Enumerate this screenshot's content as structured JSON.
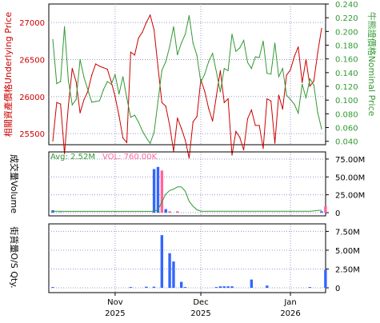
{
  "chart_data": [
    {
      "type": "line",
      "ylabel_left": "相關資產價格Underlying Price",
      "ylabel_right": "牛熊證價格Nominal Price",
      "ylim_left": [
        25350,
        27250
      ],
      "yticks_left": [
        "25500",
        "26000",
        "26500",
        "27000"
      ],
      "ylim_right": [
        0.035,
        0.24
      ],
      "yticks_right": [
        "0.040",
        "0.060",
        "0.080",
        "0.100",
        "0.120",
        "0.140",
        "0.160",
        "0.180",
        "0.200",
        "0.220",
        "0.240"
      ],
      "grid": true,
      "series": [
        {
          "color": "#cc0000",
          "axis": "left",
          "values": [
            25400,
            25920,
            25900,
            25230,
            25880,
            26380,
            26200,
            25780,
            25960,
            26070,
            26290,
            26440,
            26410,
            26390,
            26370,
            26200,
            26000,
            25740,
            25440,
            25380,
            26600,
            26560,
            26790,
            26870,
            27000,
            27100,
            26900,
            26400,
            25920,
            25870,
            25610,
            25260,
            25710,
            25570,
            25410,
            25170,
            25660,
            25730,
            26230,
            26070,
            25840,
            25670,
            26010,
            26350,
            25920,
            25970,
            25210,
            25530,
            25450,
            25280,
            25700,
            25820,
            25610,
            25610,
            25300,
            25970,
            25940,
            25370,
            26020,
            25830,
            26290,
            26360,
            26540,
            26670,
            26190,
            26500,
            26140,
            26210,
            26590,
            26920
          ]
        },
        {
          "color": "#339933",
          "axis": "right",
          "values": [
            0.188,
            0.124,
            0.127,
            0.207,
            0.128,
            0.093,
            0.101,
            0.159,
            0.133,
            0.115,
            0.097,
            0.098,
            0.099,
            0.115,
            0.127,
            0.123,
            0.137,
            0.109,
            0.134,
            0.103,
            0.075,
            0.078,
            0.068,
            0.055,
            0.045,
            0.037,
            0.053,
            0.098,
            0.143,
            0.156,
            0.178,
            0.207,
            0.166,
            0.183,
            0.196,
            0.223,
            0.183,
            0.165,
            0.126,
            0.138,
            0.156,
            0.168,
            0.141,
            0.112,
            0.146,
            0.143,
            0.196,
            0.171,
            0.176,
            0.187,
            0.155,
            0.146,
            0.163,
            0.162,
            0.186,
            0.139,
            0.138,
            0.183,
            0.134,
            0.146,
            0.107,
            0.101,
            0.094,
            0.081,
            0.123,
            0.103,
            0.131,
            0.122,
            0.082,
            0.058
          ]
        }
      ],
      "x_range_months": [
        "2025-10-09",
        "2026-01-15"
      ],
      "xticks": [
        {
          "month": "Nov",
          "year": "2025",
          "date": "2025-11-01"
        },
        {
          "month": "Dec",
          "year": "2025",
          "date": "2025-12-01"
        },
        {
          "month": "Jan",
          "year": "2026",
          "date": "2026-01-01"
        }
      ]
    },
    {
      "type": "bar",
      "ylabel": "成交量Volume",
      "legend": [
        {
          "label": "Avg: 2.52M",
          "color": "#339933"
        },
        {
          "label": "VOL: 760.00K",
          "color": "#ff6699"
        }
      ],
      "ylim": [
        0,
        85000000
      ],
      "yticks": [
        "0",
        "25.00M",
        "50.00M",
        "75.00M"
      ],
      "grid": true,
      "bars": [
        {
          "day": 1,
          "value": 3500000,
          "color": "#3366ff"
        },
        {
          "day": 3,
          "value": 500000,
          "color": "#3366ff"
        },
        {
          "day": 27,
          "value": 61000000,
          "color": "#3366ff"
        },
        {
          "day": 28,
          "value": 64000000,
          "color": "#3366ff"
        },
        {
          "day": 29,
          "value": 59000000,
          "color": "#ff6699"
        },
        {
          "day": 30,
          "value": 5000000,
          "color": "#3366ff"
        },
        {
          "day": 31,
          "value": 2000000,
          "color": "#ff6699"
        },
        {
          "day": 33,
          "value": 2000000,
          "color": "#ff6699"
        },
        {
          "day": 70,
          "value": 2000000,
          "color": "#3366ff"
        },
        {
          "day": 71,
          "value": 9000000,
          "color": "#ff6699"
        }
      ],
      "avg_line": [
        2000000,
        2000000,
        2000000,
        1800000,
        1800000,
        1800000,
        1800000,
        1800000,
        1800000,
        1800000,
        1800000,
        1800000,
        1800000,
        1800000,
        1800000,
        1800000,
        1800000,
        1800000,
        1800000,
        1800000,
        1800000,
        1800000,
        1800000,
        1800000,
        1800000,
        1800000,
        1800000,
        4000000,
        15000000,
        26000000,
        31000000,
        33000000,
        36000000,
        36000000,
        30000000,
        16000000,
        9000000,
        4000000,
        2000000,
        2000000,
        2000000,
        2000000,
        2000000,
        2000000,
        2000000,
        2000000,
        2000000,
        2000000,
        2000000,
        2000000,
        2000000,
        2000000,
        2000000,
        2000000,
        2000000,
        2000000,
        2000000,
        2000000,
        2000000,
        2000000,
        2000000,
        2000000,
        2000000,
        2000000,
        2000000,
        2000000,
        2000000,
        2500000,
        3000000,
        3500000
      ]
    },
    {
      "type": "bar",
      "ylabel": "街貨量O/S Qty.",
      "ylim": [
        0,
        8500000
      ],
      "yticks": [
        "0",
        "2.50M",
        "5.00M",
        "7.50M"
      ],
      "grid": true,
      "bars": [
        {
          "day": 1,
          "value": 100000,
          "color": "#3366ff"
        },
        {
          "day": 21,
          "value": 100000,
          "color": "#3366ff"
        },
        {
          "day": 25,
          "value": 150000,
          "color": "#3366ff"
        },
        {
          "day": 27,
          "value": 150000,
          "color": "#3366ff"
        },
        {
          "day": 29,
          "value": 7000000,
          "color": "#3366ff"
        },
        {
          "day": 31,
          "value": 4600000,
          "color": "#3366ff"
        },
        {
          "day": 32,
          "value": 3500000,
          "color": "#3366ff"
        },
        {
          "day": 34,
          "value": 800000,
          "color": "#3366ff"
        },
        {
          "day": 35,
          "value": 100000,
          "color": "#3366ff"
        },
        {
          "day": 43,
          "value": 100000,
          "color": "#3366ff"
        },
        {
          "day": 44,
          "value": 200000,
          "color": "#3366ff"
        },
        {
          "day": 45,
          "value": 200000,
          "color": "#3366ff"
        },
        {
          "day": 46,
          "value": 200000,
          "color": "#3366ff"
        },
        {
          "day": 47,
          "value": 200000,
          "color": "#3366ff"
        },
        {
          "day": 52,
          "value": 1100000,
          "color": "#3366ff"
        },
        {
          "day": 56,
          "value": 300000,
          "color": "#3366ff"
        },
        {
          "day": 67,
          "value": 100000,
          "color": "#3366ff"
        },
        {
          "day": 71,
          "value": 2400000,
          "color": "#3366ff"
        }
      ]
    }
  ]
}
